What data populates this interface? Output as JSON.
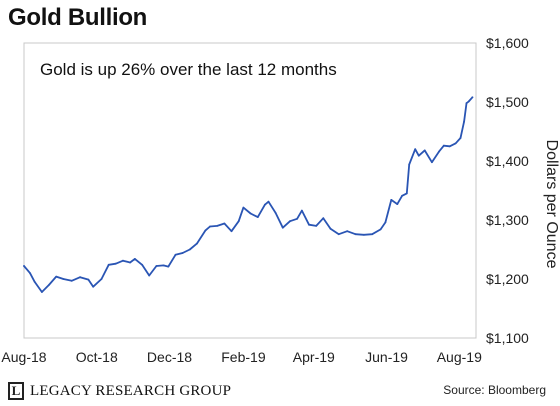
{
  "title": "Gold Bullion",
  "source": "Source: Bloomberg",
  "brand": "LEGACY RESEARCH GROUP",
  "brand_letter": "L",
  "chart_data": {
    "type": "line",
    "title": "Gold Bullion",
    "annotation": "Gold is up 26% over the last 12 months",
    "ylabel": "Dollars per Ounce",
    "xlabel": "",
    "ylim": [
      1100,
      1600
    ],
    "yticks": [
      1100,
      1200,
      1300,
      1400,
      1500,
      1600
    ],
    "ytick_labels": [
      "$1,100",
      "$1,200",
      "$1,300",
      "$1,400",
      "$1,500",
      "$1,600"
    ],
    "xlim": [
      "2018-08-01",
      "2019-08-15"
    ],
    "xtick_labels": [
      "Aug-18",
      "Oct-18",
      "Dec-18",
      "Feb-19",
      "Apr-19",
      "Jun-19",
      "Aug-19"
    ],
    "xtick_dates": [
      "2018-08-01",
      "2018-10-01",
      "2018-12-01",
      "2019-02-01",
      "2019-04-01",
      "2019-06-01",
      "2019-08-01"
    ],
    "grid": false,
    "line_color": "#2a55b4",
    "series": [
      {
        "x": [
          "2018-08-01",
          "2018-08-06",
          "2018-08-10",
          "2018-08-16",
          "2018-08-22",
          "2018-08-28",
          "2018-09-03",
          "2018-09-10",
          "2018-09-17",
          "2018-09-24",
          "2018-09-28",
          "2018-10-05",
          "2018-10-11",
          "2018-10-17",
          "2018-10-23",
          "2018-10-29",
          "2018-11-02",
          "2018-11-08",
          "2018-11-14",
          "2018-11-20",
          "2018-11-26",
          "2018-11-30",
          "2018-12-06",
          "2018-12-12",
          "2018-12-18",
          "2018-12-24",
          "2018-12-31",
          "2019-01-04",
          "2019-01-10",
          "2019-01-16",
          "2019-01-22",
          "2019-01-28",
          "2019-02-01",
          "2019-02-07",
          "2019-02-13",
          "2019-02-19",
          "2019-02-22",
          "2019-02-28",
          "2019-03-06",
          "2019-03-12",
          "2019-03-18",
          "2019-03-22",
          "2019-03-28",
          "2019-04-03",
          "2019-04-09",
          "2019-04-15",
          "2019-04-22",
          "2019-04-29",
          "2019-05-06",
          "2019-05-13",
          "2019-05-20",
          "2019-05-27",
          "2019-05-31",
          "2019-06-05",
          "2019-06-10",
          "2019-06-14",
          "2019-06-18",
          "2019-06-20",
          "2019-06-25",
          "2019-06-28",
          "2019-07-03",
          "2019-07-09",
          "2019-07-15",
          "2019-07-19",
          "2019-07-24",
          "2019-07-29",
          "2019-08-02",
          "2019-08-05",
          "2019-08-07",
          "2019-08-09",
          "2019-08-12"
        ],
        "values": [
          1222,
          1210,
          1195,
          1178,
          1190,
          1204,
          1200,
          1197,
          1203,
          1199,
          1187,
          1200,
          1224,
          1226,
          1231,
          1228,
          1234,
          1224,
          1206,
          1222,
          1223,
          1221,
          1241,
          1244,
          1250,
          1260,
          1282,
          1289,
          1290,
          1294,
          1281,
          1298,
          1321,
          1311,
          1305,
          1326,
          1331,
          1312,
          1287,
          1298,
          1302,
          1316,
          1292,
          1290,
          1303,
          1285,
          1276,
          1281,
          1276,
          1275,
          1276,
          1284,
          1296,
          1334,
          1327,
          1341,
          1345,
          1394,
          1420,
          1409,
          1418,
          1398,
          1416,
          1426,
          1425,
          1430,
          1439,
          1467,
          1498,
          1501,
          1508
        ]
      }
    ]
  }
}
